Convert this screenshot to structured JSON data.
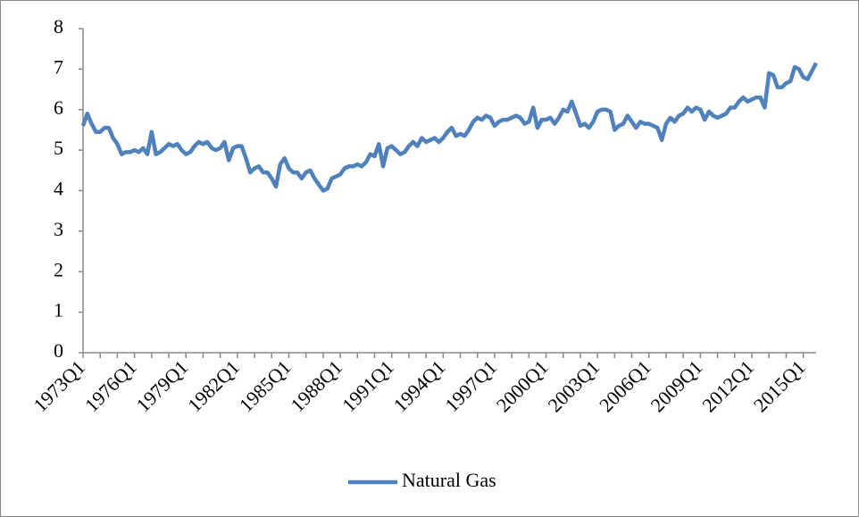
{
  "chart_data": {
    "type": "line",
    "categories": [
      "1973Q1",
      null,
      null,
      null,
      null,
      null,
      null,
      null,
      null,
      null,
      null,
      null,
      "1976Q1",
      null,
      null,
      null,
      null,
      null,
      null,
      null,
      null,
      null,
      null,
      null,
      "1979Q1",
      null,
      null,
      null,
      null,
      null,
      null,
      null,
      null,
      null,
      null,
      null,
      "1982Q1",
      null,
      null,
      null,
      null,
      null,
      null,
      null,
      null,
      null,
      null,
      null,
      "1985Q1",
      null,
      null,
      null,
      null,
      null,
      null,
      null,
      null,
      null,
      null,
      null,
      "1988Q1",
      null,
      null,
      null,
      null,
      null,
      null,
      null,
      null,
      null,
      null,
      null,
      "1991Q1",
      null,
      null,
      null,
      null,
      null,
      null,
      null,
      null,
      null,
      null,
      null,
      "1994Q1",
      null,
      null,
      null,
      null,
      null,
      null,
      null,
      null,
      null,
      null,
      null,
      "1997Q1",
      null,
      null,
      null,
      null,
      null,
      null,
      null,
      null,
      null,
      null,
      null,
      "2000Q1",
      null,
      null,
      null,
      null,
      null,
      null,
      null,
      null,
      null,
      null,
      null,
      "2003Q1",
      null,
      null,
      null,
      null,
      null,
      null,
      null,
      null,
      null,
      null,
      null,
      "2006Q1",
      null,
      null,
      null,
      null,
      null,
      null,
      null,
      null,
      null,
      null,
      null,
      "2009Q1",
      null,
      null,
      null,
      null,
      null,
      null,
      null,
      null,
      null,
      null,
      null,
      "2012Q1",
      null,
      null,
      null,
      null,
      null,
      null,
      null,
      null,
      null,
      null,
      null,
      "2015Q1",
      null,
      null,
      null
    ],
    "series": [
      {
        "name": "Natural Gas",
        "color": "#4f81bd",
        "values": [
          5.6,
          5.9,
          5.65,
          5.45,
          5.45,
          5.55,
          5.55,
          5.3,
          5.15,
          4.9,
          4.95,
          4.95,
          5.0,
          4.95,
          5.05,
          4.9,
          5.45,
          4.9,
          4.95,
          5.05,
          5.15,
          5.1,
          5.15,
          5.0,
          4.9,
          4.95,
          5.1,
          5.2,
          5.15,
          5.2,
          5.05,
          5.0,
          5.05,
          5.2,
          4.75,
          5.05,
          5.1,
          5.1,
          4.8,
          4.45,
          4.55,
          4.6,
          4.45,
          4.45,
          4.3,
          4.1,
          4.65,
          4.8,
          4.55,
          4.45,
          4.45,
          4.3,
          4.45,
          4.5,
          4.3,
          4.15,
          4.0,
          4.05,
          4.3,
          4.35,
          4.4,
          4.55,
          4.6,
          4.6,
          4.65,
          4.6,
          4.7,
          4.9,
          4.85,
          5.15,
          4.6,
          5.05,
          5.1,
          5.0,
          4.9,
          4.95,
          5.1,
          5.2,
          5.1,
          5.3,
          5.2,
          5.25,
          5.3,
          5.2,
          5.3,
          5.45,
          5.55,
          5.35,
          5.4,
          5.35,
          5.5,
          5.7,
          5.8,
          5.75,
          5.85,
          5.8,
          5.6,
          5.7,
          5.75,
          5.75,
          5.8,
          5.85,
          5.8,
          5.65,
          5.7,
          6.05,
          5.55,
          5.75,
          5.75,
          5.8,
          5.65,
          5.8,
          6.0,
          5.95,
          6.2,
          5.9,
          5.6,
          5.65,
          5.55,
          5.7,
          5.95,
          6.0,
          6.0,
          5.95,
          5.5,
          5.6,
          5.65,
          5.85,
          5.7,
          5.55,
          5.7,
          5.65,
          5.65,
          5.6,
          5.55,
          5.25,
          5.65,
          5.8,
          5.7,
          5.85,
          5.9,
          6.05,
          5.95,
          6.05,
          6.0,
          5.75,
          5.95,
          5.85,
          5.8,
          5.85,
          5.9,
          6.05,
          6.05,
          6.2,
          6.3,
          6.2,
          6.25,
          6.3,
          6.3,
          6.05,
          6.9,
          6.85,
          6.55,
          6.55,
          6.65,
          6.7,
          7.05,
          7.0,
          6.8,
          6.75,
          6.95,
          7.15
        ]
      }
    ],
    "ylim": [
      0,
      8
    ],
    "yticks": [
      0,
      1,
      2,
      3,
      4,
      5,
      6,
      7,
      8
    ],
    "grid": false,
    "legend": "bottom"
  }
}
